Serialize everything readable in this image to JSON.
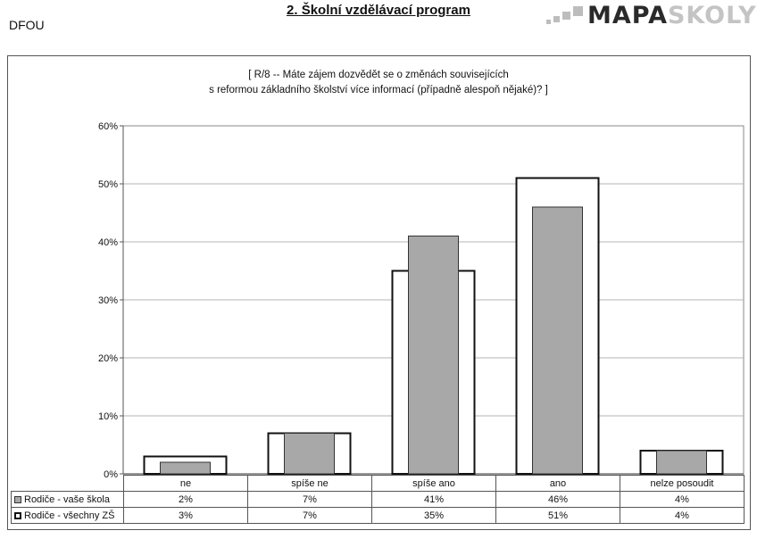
{
  "header": {
    "school_code": "DFOU",
    "heading": "2. Školní vzdělávací program",
    "logo_part1": "MAPA",
    "logo_part2": "SKOLY"
  },
  "chart_data": {
    "type": "bar",
    "title_line1": "[ R/8 -- Máte zájem dozvědět se o změnách souvisejících",
    "title_line2": "s reformou základního školství více informací (případně alespoň nějaké)? ]",
    "categories": [
      "ne",
      "spíše ne",
      "spíše ano",
      "ano",
      "nelze posoudit"
    ],
    "series": [
      {
        "name": "Rodiče - vaše škola",
        "values": [
          2,
          7,
          41,
          46,
          4
        ],
        "labels": [
          "2%",
          "7%",
          "41%",
          "46%",
          "4%"
        ],
        "color": "#a8a8a8"
      },
      {
        "name": "Rodiče - všechny ZŠ",
        "values": [
          3,
          7,
          35,
          51,
          4
        ],
        "labels": [
          "3%",
          "7%",
          "35%",
          "51%",
          "4%"
        ],
        "color": "#ffffff"
      }
    ],
    "ylim": [
      0,
      60
    ],
    "yticks": [
      "0%",
      "10%",
      "20%",
      "30%",
      "40%",
      "50%",
      "60%"
    ],
    "grid": true,
    "legend": "data table below chart"
  }
}
